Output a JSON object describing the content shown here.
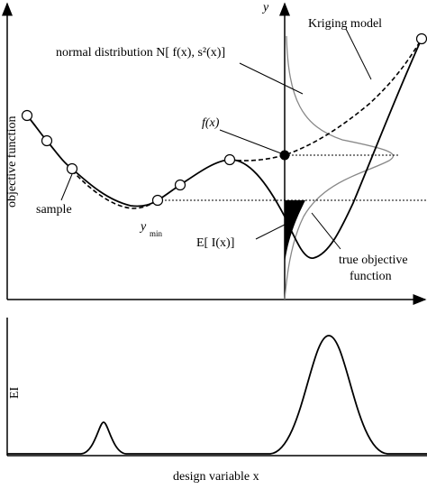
{
  "labels": {
    "y_axis": "y",
    "kriging_model": "Kriging model",
    "normal_distribution": "normal distribution N[ f(x), s²(x)]",
    "objective_function": "objective function",
    "fx": "f(x)",
    "sample": "sample",
    "y_min": "y",
    "y_min_sub": "min",
    "expected_improvement": "E[ I(x)]",
    "true_objective": "true objective",
    "function": "function",
    "ei": "EI",
    "design_variable": "design variable x"
  }
}
